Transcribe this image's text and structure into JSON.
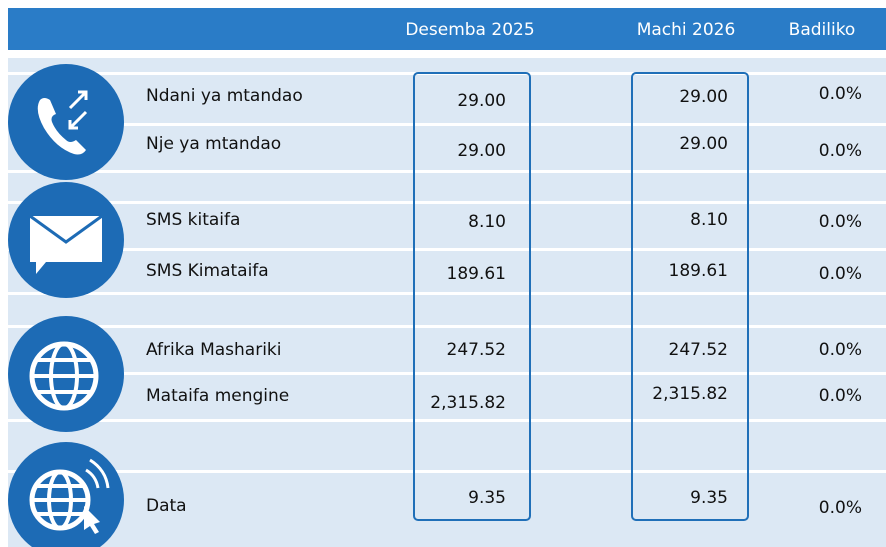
{
  "header": {
    "columns": [
      "Desemba 2025",
      "Machi 2026",
      "Badiliko"
    ]
  },
  "rows": [
    {
      "label": "Ndani ya mtandao",
      "desemba": "29.00",
      "machi": "29.00",
      "badiliko": "0.0%"
    },
    {
      "label": "Nje ya mtandao",
      "desemba": "29.00",
      "machi": "29.00",
      "badiliko": "0.0%"
    },
    {
      "label": "SMS kitaifa",
      "desemba": "8.10",
      "machi": "8.10",
      "badiliko": "0.0%"
    },
    {
      "label": "SMS Kimataifa",
      "desemba": "189.61",
      "machi": "189.61",
      "badiliko": "0.0%"
    },
    {
      "label": "Afrika Mashariki",
      "desemba": "247.52",
      "machi": "247.52",
      "badiliko": "0.0%"
    },
    {
      "label": "Mataifa mengine",
      "desemba": "2,315.82",
      "machi": "2,315.82",
      "badiliko": "0.0%"
    },
    {
      "label": "Data",
      "desemba": "9.35",
      "machi": "9.35",
      "badiliko": "0.0%"
    }
  ]
}
